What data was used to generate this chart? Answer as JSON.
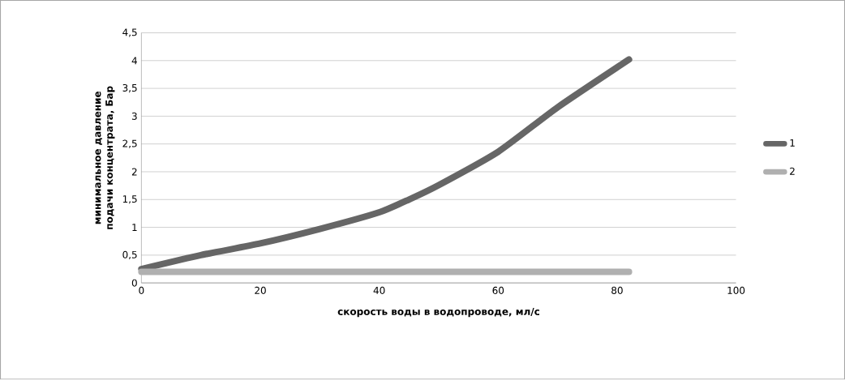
{
  "chart_data": {
    "type": "line",
    "xlabel": "скорость воды в водопроводе, мл/с",
    "ylabel": "минимальное давление подачи концентрата, Бар",
    "series": [
      {
        "name": "1",
        "color": "#666666",
        "x": [
          0,
          10,
          20,
          30,
          40,
          45,
          50,
          60,
          70,
          82
        ],
        "values": [
          0.25,
          0.5,
          0.71,
          0.97,
          1.27,
          1.5,
          1.76,
          2.36,
          3.16,
          4.02
        ]
      },
      {
        "name": "2",
        "color": "#b0b0b0",
        "x": [
          0,
          82
        ],
        "values": [
          0.2,
          0.2
        ]
      }
    ],
    "xlim": [
      0,
      100
    ],
    "xticks": [
      0,
      20,
      40,
      60,
      80,
      100
    ],
    "ylim": [
      0,
      4.5
    ],
    "yticks": [
      0,
      {
        "value": 0.5,
        "label": "0,5"
      },
      1,
      {
        "value": 1.5,
        "label": "1,5"
      },
      2,
      {
        "value": 2.5,
        "label": "2,5"
      },
      3,
      {
        "value": 3.5,
        "label": "3,5"
      },
      4,
      {
        "value": 4.5,
        "label": "4,5"
      }
    ],
    "grid": "y",
    "legend": "right"
  }
}
